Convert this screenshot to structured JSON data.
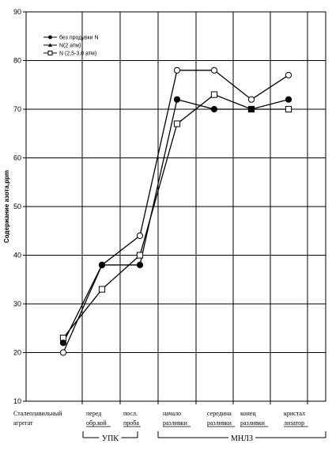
{
  "chart_data": {
    "type": "line",
    "ylabel": "Содержание азота,ppm",
    "ylim": [
      10,
      90
    ],
    "yticks": [
      10,
      20,
      30,
      40,
      50,
      60,
      70,
      80,
      90
    ],
    "grid": "horizontal and vertical",
    "legend_position": "top-left",
    "categories": [
      [
        "Сталеплавильный",
        "агрегат"
      ],
      [
        "перед",
        "обр.кой"
      ],
      [
        "посл.",
        "проба"
      ],
      [
        "начало",
        "разливки"
      ],
      [
        "середина",
        "разливки"
      ],
      [
        "конец",
        "разливки"
      ],
      [
        "кристал",
        "лизатор"
      ]
    ],
    "groups": [
      {
        "label": "УПК",
        "from": 1,
        "to": 2
      },
      {
        "label": "МНЛЗ",
        "from": 3,
        "to": 6
      }
    ],
    "series": [
      {
        "name": "без продувки N",
        "marker": "filled-circle",
        "values": [
          22,
          38,
          38,
          72,
          70,
          70,
          72
        ]
      },
      {
        "name": "N(2 атм)",
        "marker": "open-circle",
        "values": [
          20,
          38,
          44,
          78,
          78,
          72,
          77
        ]
      },
      {
        "name": "N (2,5-3,0 атм)",
        "marker": "open-square",
        "values": [
          23,
          33,
          40,
          67,
          73,
          70,
          70
        ]
      }
    ]
  }
}
